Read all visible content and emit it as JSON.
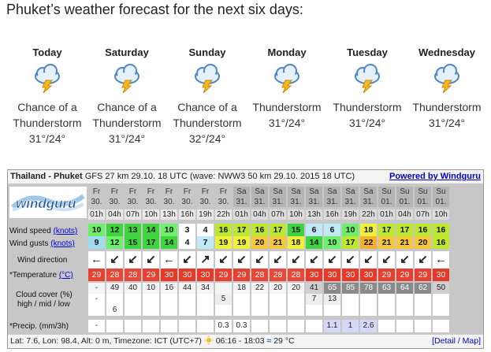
{
  "page_title": "Phuket’s weather forecast for the next six days:",
  "days": [
    {
      "name": "Today",
      "cond_1": "Chance of a",
      "cond_2": "Thunderstorm",
      "temp": "31°/24°"
    },
    {
      "name": "Saturday",
      "cond_1": "Chance of a",
      "cond_2": "Thunderstorm",
      "temp": "31°/24°"
    },
    {
      "name": "Sunday",
      "cond_1": "Chance of a",
      "cond_2": "Thunderstorm",
      "temp": "32°/24°"
    },
    {
      "name": "Monday",
      "cond_1": "",
      "cond_2": "Thunderstorm",
      "temp": "31°/24°"
    },
    {
      "name": "Tuesday",
      "cond_1": "",
      "cond_2": "Thunderstorm",
      "temp": "31°/24°"
    },
    {
      "name": "Wednesday",
      "cond_1": "",
      "cond_2": "Thunderstorm",
      "temp": "31°/24°"
    }
  ],
  "weather_icon": "cloud-lightning-icon",
  "windguru": {
    "location": "Thailand - Phuket",
    "model_info": "GFS 27 km 29.10. 18 UTC (wave: NWW3 50 km 29.10. 2015 18 UTC)",
    "powered_by": "Powered by Windguru",
    "logo_text": "windguru",
    "columns": [
      {
        "day": "Fr",
        "date": "30.",
        "hour": "01h"
      },
      {
        "day": "Fr",
        "date": "30.",
        "hour": "04h"
      },
      {
        "day": "Fr",
        "date": "30.",
        "hour": "07h"
      },
      {
        "day": "Fr",
        "date": "30.",
        "hour": "10h"
      },
      {
        "day": "Fr",
        "date": "30.",
        "hour": "13h"
      },
      {
        "day": "Fr",
        "date": "30.",
        "hour": "16h"
      },
      {
        "day": "Fr",
        "date": "30.",
        "hour": "19h"
      },
      {
        "day": "Fr",
        "date": "30.",
        "hour": "22h"
      },
      {
        "day": "Sa",
        "date": "31.",
        "hour": "01h"
      },
      {
        "day": "Sa",
        "date": "31.",
        "hour": "04h"
      },
      {
        "day": "Sa",
        "date": "31.",
        "hour": "07h"
      },
      {
        "day": "Sa",
        "date": "31.",
        "hour": "10h"
      },
      {
        "day": "Sa",
        "date": "31.",
        "hour": "13h"
      },
      {
        "day": "Sa",
        "date": "31.",
        "hour": "16h"
      },
      {
        "day": "Sa",
        "date": "31.",
        "hour": "19h"
      },
      {
        "day": "Sa",
        "date": "31.",
        "hour": "22h"
      },
      {
        "day": "Su",
        "date": "01.",
        "hour": "01h"
      },
      {
        "day": "Su",
        "date": "01.",
        "hour": "04h"
      },
      {
        "day": "Su",
        "date": "01.",
        "hour": "07h"
      },
      {
        "day": "Su",
        "date": "01.",
        "hour": "10h"
      }
    ],
    "wind_speed_label": "Wind speed",
    "wind_speed_units": "(knots)",
    "wind_speed": [
      "10",
      "12",
      "13",
      "14",
      "10",
      "3",
      "4",
      "16",
      "17",
      "16",
      "17",
      "15",
      "6",
      "6",
      "10",
      "18",
      "17",
      "17",
      "16",
      "16"
    ],
    "wind_speed_colors": [
      "#6cf06c",
      "#3ed43e",
      "#3ed43e",
      "#3ed43e",
      "#6cf06c",
      "#ffffff",
      "#ffffff",
      "#bde82e",
      "#bde82e",
      "#bde82e",
      "#bde82e",
      "#3ed43e",
      "#bfe9f7",
      "#bfe9f7",
      "#6cf06c",
      "#eef03a",
      "#bde82e",
      "#bde82e",
      "#bde82e",
      "#bde82e"
    ],
    "wind_gusts_label": "Wind gusts",
    "wind_gusts_units": "(knots)",
    "wind_gusts": [
      "9",
      "12",
      "15",
      "17",
      "14",
      "4",
      "7",
      "19",
      "19",
      "20",
      "21",
      "18",
      "14",
      "10",
      "17",
      "22",
      "21",
      "21",
      "20",
      "16"
    ],
    "wind_gusts_colors": [
      "#9fdcf0",
      "#6cf06c",
      "#3ed43e",
      "#3ed43e",
      "#3ed43e",
      "#ffffff",
      "#bfe9f7",
      "#eef03a",
      "#eef03a",
      "#f4c83a",
      "#f4c83a",
      "#eef03a",
      "#3ed43e",
      "#6cf06c",
      "#bde82e",
      "#f4b030",
      "#f4c83a",
      "#f4c83a",
      "#f4c83a",
      "#bde82e"
    ],
    "wind_direction_label": "Wind direction",
    "wind_direction": [
      "←",
      "↙",
      "↙",
      "↙",
      "←",
      "↙",
      "↗",
      "↙",
      "↙",
      "↙",
      "↙",
      "↙",
      "↙",
      "↙",
      "↙",
      "↙",
      "↙",
      "↙",
      "↙",
      "←"
    ],
    "temperature_label": "*Temperature",
    "temperature_units": "(°C)",
    "temperature": [
      "29",
      "28",
      "28",
      "29",
      "30",
      "30",
      "30",
      "29",
      "29",
      "28",
      "28",
      "28",
      "30",
      "30",
      "30",
      "30",
      "29",
      "29",
      "29",
      "30"
    ],
    "temperature_colors": [
      "#e84030",
      "#e84838",
      "#e84838",
      "#e84030",
      "#e83828",
      "#e83828",
      "#e83828",
      "#e84030",
      "#e84030",
      "#e84838",
      "#e84838",
      "#e84838",
      "#e83828",
      "#e83828",
      "#e83828",
      "#e83828",
      "#e84030",
      "#e84030",
      "#e84030",
      "#e83828"
    ],
    "cloud_label_1": "Cloud cover (%)",
    "cloud_label_2": "high / mid / low",
    "cloud_high": [
      "-",
      "49",
      "40",
      "10",
      "16",
      "44",
      "34",
      "",
      "18",
      "22",
      "20",
      "20",
      "41",
      "65",
      "85",
      "78",
      "63",
      "64",
      "62",
      "50"
    ],
    "cloud_mid": [
      "-",
      "",
      "",
      "",
      "",
      "",
      "",
      "5",
      "",
      "",
      "",
      "",
      "7",
      "13",
      "",
      "",
      "",
      "",
      "",
      ""
    ],
    "cloud_low": [
      "",
      "6",
      "",
      "",
      "",
      "",
      "",
      "",
      "",
      "",
      "",
      "",
      "",
      "",
      "",
      "",
      "",
      "",
      "",
      ""
    ],
    "precip_label": "*Precip. (mm/3h)",
    "precip": [
      "-",
      "",
      "",
      "",
      "",
      "",
      "",
      "0.3",
      "0.3",
      "",
      "",
      "",
      "",
      "1.1",
      "1",
      "2.6",
      "",
      "",
      "",
      ""
    ],
    "footer": "Lat: 7.6, Lon: 98.4, Alt: 0 m, Timezone: ICT (UTC+7)",
    "sun_times": "06:16 - 18:03",
    "water_temp": "29 °C",
    "detail_map": "[Detail / Map]"
  }
}
